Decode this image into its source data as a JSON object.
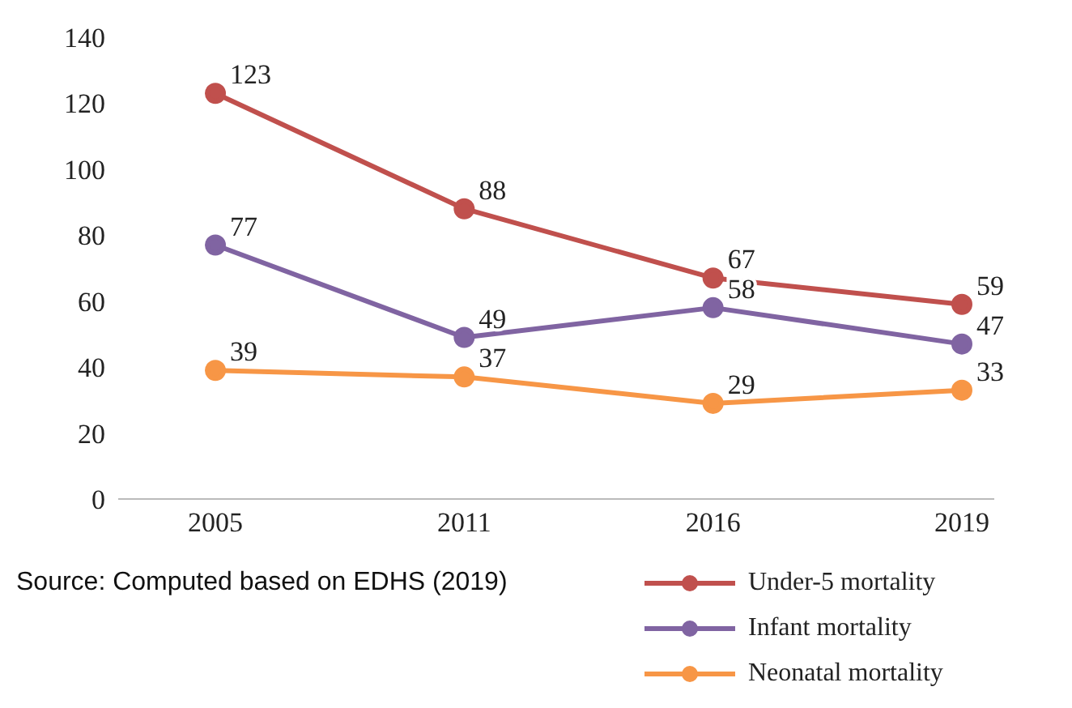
{
  "chart_data": {
    "type": "line",
    "categories": [
      "2005",
      "2011",
      "2016",
      "2019"
    ],
    "series": [
      {
        "name": "Under-5 mortality",
        "color": "#c0504d",
        "values": [
          123,
          88,
          67,
          59
        ]
      },
      {
        "name": "Infant mortality",
        "color": "#8064a2",
        "values": [
          77,
          49,
          58,
          47
        ]
      },
      {
        "name": "Neonatal mortality",
        "color": "#f79646",
        "values": [
          39,
          37,
          29,
          33
        ]
      }
    ],
    "ylim": [
      0,
      140
    ],
    "yticks": [
      0,
      20,
      40,
      60,
      80,
      100,
      120,
      140
    ],
    "grid": false,
    "legend": "bottom right",
    "marker": "circle",
    "line_style": "solid",
    "data_labels": true,
    "annotations": [
      "Source: Computed based on EDHS (2019)"
    ]
  }
}
